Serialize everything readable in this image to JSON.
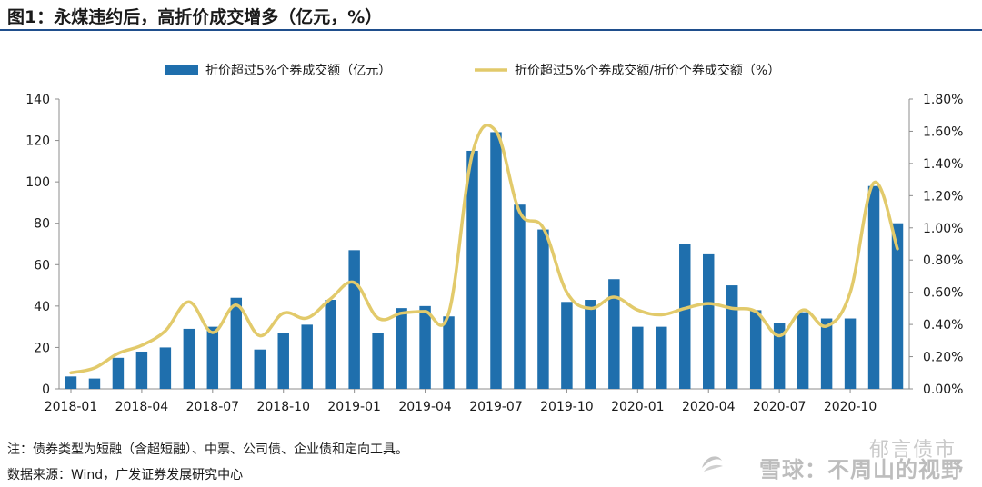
{
  "title": "图1：永煤违约后，高折价成交增多（亿元，%）",
  "note": "注：债券类型为短融（含超短融）、中票、公司债、企业债和定向工具。",
  "source": "数据来源：Wind，广发证券发展研究中心",
  "watermark": {
    "line1": "郁言债市",
    "line2": "雪球：不周山的视野"
  },
  "colors": {
    "bar": "#1f6fad",
    "line": "#e2ca6b",
    "title_rule": "#1f4e8c"
  },
  "chart_data": {
    "type": "bar",
    "categories": [
      "2018-01",
      "2018-02",
      "2018-03",
      "2018-04",
      "2018-05",
      "2018-06",
      "2018-07",
      "2018-08",
      "2018-09",
      "2018-10",
      "2018-11",
      "2018-12",
      "2019-01",
      "2019-02",
      "2019-03",
      "2019-04",
      "2019-05",
      "2019-06",
      "2019-07",
      "2019-08",
      "2019-09",
      "2019-10",
      "2019-11",
      "2019-12",
      "2020-01",
      "2020-02",
      "2020-03",
      "2020-04",
      "2020-05",
      "2020-06",
      "2020-07",
      "2020-08",
      "2020-09",
      "2020-10",
      "2020-11",
      "2020-12"
    ],
    "x_tick_labels": [
      "2018-01",
      "2018-04",
      "2018-07",
      "2018-10",
      "2019-01",
      "2019-04",
      "2019-07",
      "2019-10",
      "2020-01",
      "2020-04",
      "2020-07",
      "2020-10"
    ],
    "series": [
      {
        "name": "折价超过5%个券成交额（亿元）",
        "type": "bar",
        "axis": "left",
        "values": [
          6,
          5,
          15,
          18,
          20,
          29,
          30,
          44,
          19,
          27,
          31,
          43,
          67,
          27,
          39,
          40,
          35,
          115,
          124,
          89,
          77,
          42,
          43,
          53,
          30,
          30,
          70,
          65,
          50,
          38,
          32,
          37,
          34,
          34,
          98,
          80
        ]
      },
      {
        "name": "折价超过5%个券成交额/折价个券成交额（%）",
        "type": "line",
        "axis": "right",
        "values": [
          0.1,
          0.13,
          0.22,
          0.27,
          0.36,
          0.54,
          0.35,
          0.52,
          0.33,
          0.47,
          0.44,
          0.56,
          0.66,
          0.44,
          0.47,
          0.48,
          0.47,
          1.46,
          1.6,
          1.1,
          1.0,
          0.6,
          0.5,
          0.57,
          0.49,
          0.46,
          0.5,
          0.53,
          0.5,
          0.48,
          0.33,
          0.49,
          0.39,
          0.6,
          1.28,
          0.87
        ]
      }
    ],
    "y_left": {
      "min": 0,
      "max": 140,
      "ticks": [
        "0",
        "20",
        "40",
        "60",
        "80",
        "100",
        "120",
        "140"
      ]
    },
    "y_right": {
      "min": 0,
      "max": 1.8,
      "ticks": [
        "0.00%",
        "0.20%",
        "0.40%",
        "0.60%",
        "0.80%",
        "1.00%",
        "1.20%",
        "1.40%",
        "1.60%",
        "1.80%"
      ]
    },
    "grid": false,
    "legend_position": "top"
  }
}
